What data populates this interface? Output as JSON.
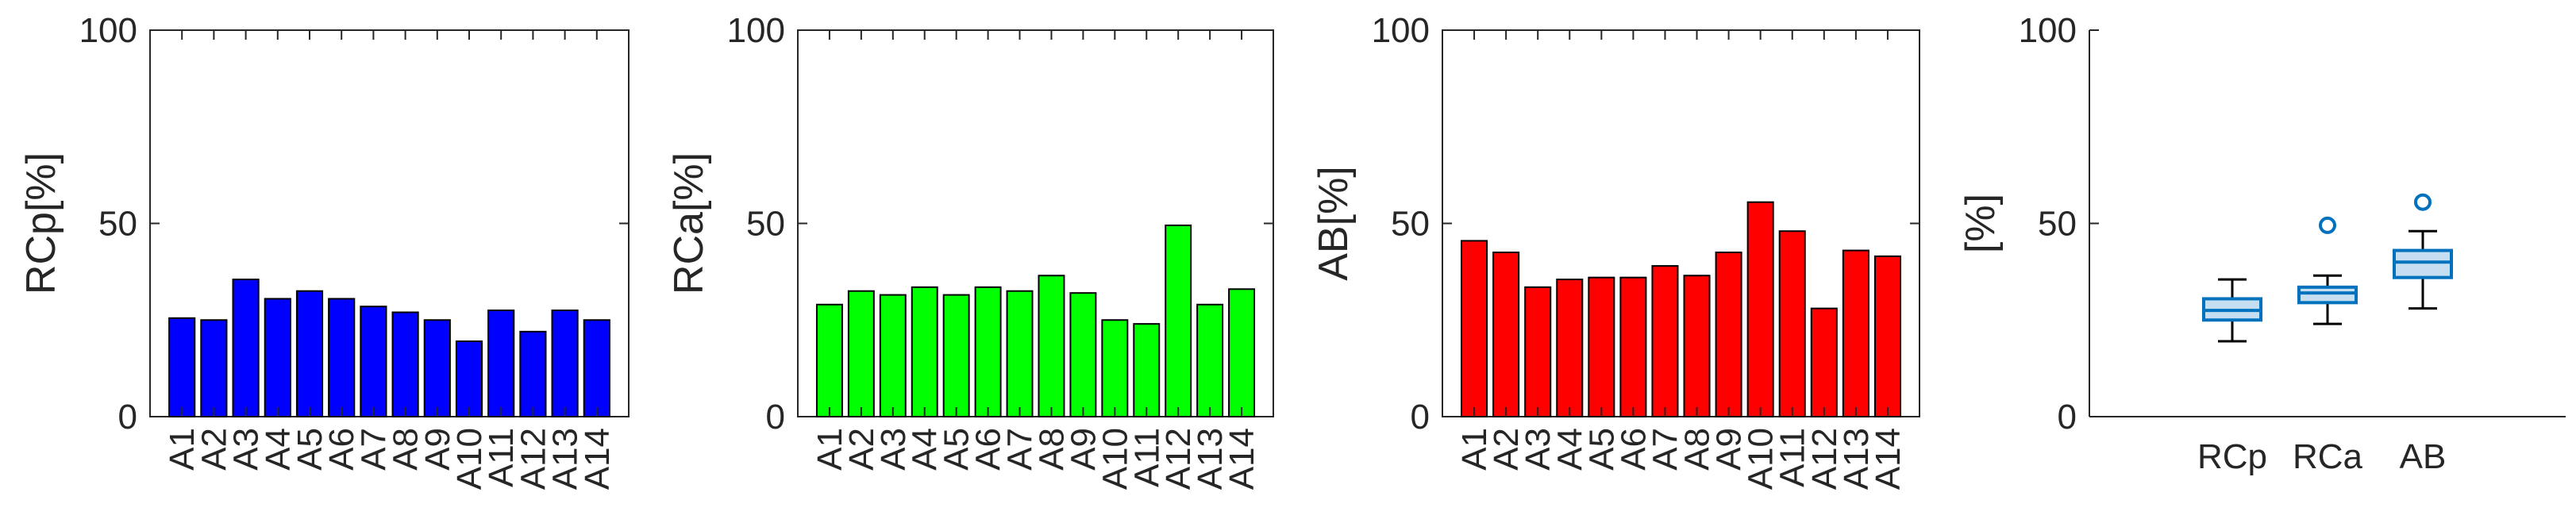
{
  "colors": {
    "blue": "#0000ff",
    "green": "#00ff00",
    "red": "#ff0000",
    "box_stroke": "#0072bd",
    "box_fill": "#c6def1"
  },
  "chart_data": [
    {
      "type": "bar",
      "ylabel": "RCp[%]",
      "ylim": [
        0,
        100
      ],
      "yticks": [
        "0",
        "50",
        "100"
      ],
      "categories": [
        "A1",
        "A2",
        "A3",
        "A4",
        "A5",
        "A6",
        "A7",
        "A8",
        "A9",
        "A10",
        "A11",
        "A12",
        "A13",
        "A14"
      ],
      "values": [
        25.5,
        25,
        35.5,
        30.5,
        32.5,
        30.5,
        28.5,
        27,
        25,
        19.5,
        27.5,
        22,
        27.5,
        25
      ],
      "color": "#0000ff",
      "box": true,
      "grid": false
    },
    {
      "type": "bar",
      "ylabel": "RCa[%]",
      "ylim": [
        0,
        100
      ],
      "yticks": [
        "0",
        "50",
        "100"
      ],
      "categories": [
        "A1",
        "A2",
        "A3",
        "A4",
        "A5",
        "A6",
        "A7",
        "A8",
        "A9",
        "A10",
        "A11",
        "A12",
        "A13",
        "A14"
      ],
      "values": [
        29,
        32.5,
        31.5,
        33.5,
        31.5,
        33.5,
        32.5,
        36.5,
        32,
        25,
        24,
        49.5,
        29,
        33
      ],
      "color": "#00ff00",
      "box": true,
      "grid": false
    },
    {
      "type": "bar",
      "ylabel": "AB[%]",
      "ylim": [
        0,
        100
      ],
      "yticks": [
        "0",
        "50",
        "100"
      ],
      "categories": [
        "A1",
        "A2",
        "A3",
        "A4",
        "A5",
        "A6",
        "A7",
        "A8",
        "A9",
        "A10",
        "A11",
        "A12",
        "A13",
        "A14"
      ],
      "values": [
        45.5,
        42.5,
        33.5,
        35.5,
        36,
        36,
        39,
        36.5,
        42.5,
        55.5,
        48,
        28,
        43,
        41.5
      ],
      "color": "#ff0000",
      "box": true,
      "grid": false
    },
    {
      "type": "boxplot",
      "ylabel": "[%]",
      "ylim": [
        0,
        100
      ],
      "yticks": [
        "0",
        "50",
        "100"
      ],
      "categories": [
        "RCp",
        "RCa",
        "AB"
      ],
      "boxes": [
        {
          "min": 19.5,
          "q1": 25,
          "median": 27.5,
          "q3": 30.5,
          "max": 35.5,
          "outliers": []
        },
        {
          "min": 24,
          "q1": 29.5,
          "median": 32,
          "q3": 33.5,
          "max": 36.5,
          "outliers": [
            49.5
          ]
        },
        {
          "min": 28,
          "q1": 36,
          "median": 40,
          "q3": 43,
          "max": 48,
          "outliers": [
            55.5
          ]
        }
      ],
      "box": false,
      "grid": false
    }
  ]
}
